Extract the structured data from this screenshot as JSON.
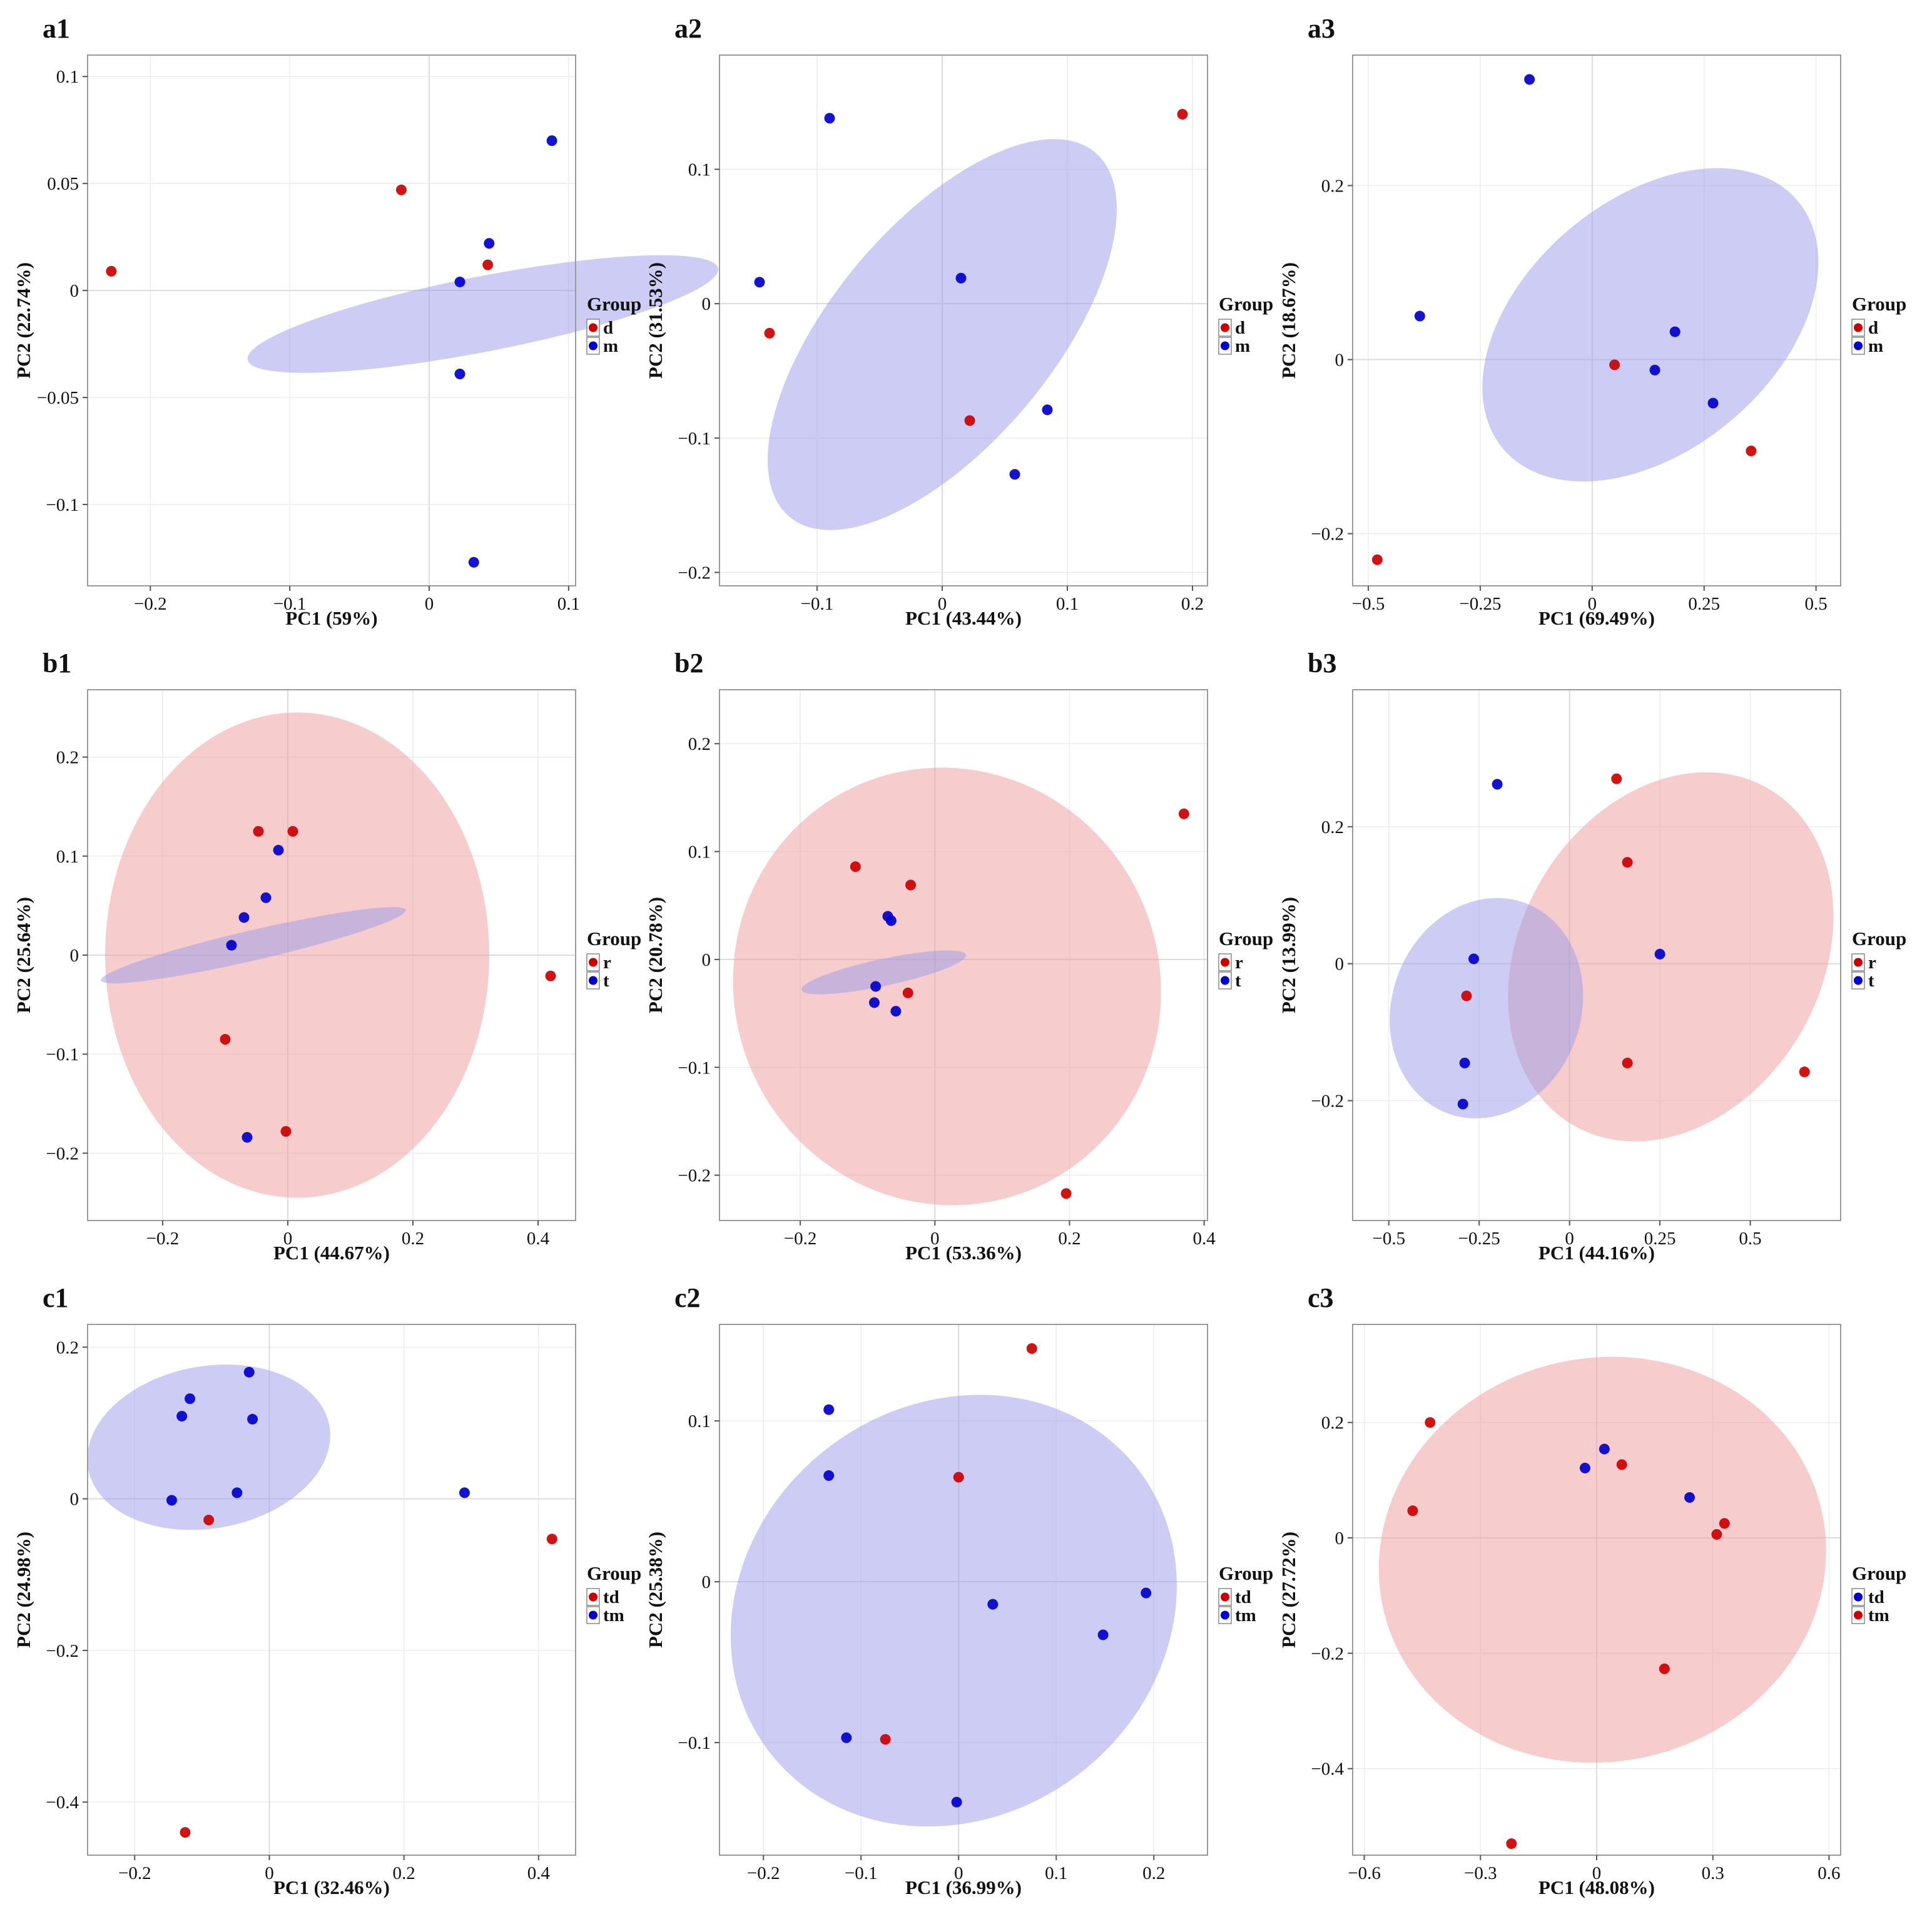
{
  "figure": {
    "grid": "on",
    "legend_position": "right",
    "zero_lines": "on"
  },
  "chart_data": [
    {
      "panel": "a1",
      "type": "scatter",
      "xlabel": "PC1 (59%)",
      "ylabel": "PC2 (22.74%)",
      "xlim": [
        -0.245,
        0.105
      ],
      "ylim": [
        -0.138,
        0.11
      ],
      "xticks": [
        -0.2,
        -0.1,
        0,
        0.1
      ],
      "xtick_labels": [
        "−0.2",
        "−0.1",
        "0",
        "0.1"
      ],
      "yticks": [
        -0.1,
        -0.05,
        0,
        0.05,
        0.1
      ],
      "ytick_labels": [
        "−0.1",
        "−0.05",
        "0",
        "0.05",
        "0.1"
      ],
      "legend": {
        "title": "Group",
        "entries": [
          {
            "label": "d",
            "color": "#cc0000"
          },
          {
            "label": "m",
            "color": "#0000cc"
          }
        ]
      },
      "ellipses": [
        {
          "group": "m",
          "color": "#9999ea",
          "cx": 0.0385,
          "cy": -0.011,
          "rx": 0.027,
          "ry": 0.112,
          "angle": 79
        }
      ],
      "series": [
        {
          "name": "d",
          "color": "#cc0000",
          "points": [
            [
              -0.228,
              0.009
            ],
            [
              -0.02,
              0.047
            ],
            [
              0.042,
              0.012
            ]
          ]
        },
        {
          "name": "m",
          "color": "#0000cc",
          "points": [
            [
              0.088,
              0.07
            ],
            [
              0.043,
              0.022
            ],
            [
              0.022,
              0.004
            ],
            [
              0.022,
              -0.039
            ],
            [
              0.032,
              -0.127
            ]
          ]
        }
      ]
    },
    {
      "panel": "a2",
      "type": "scatter",
      "xlabel": "PC1 (43.44%)",
      "ylabel": "PC2 (31.53%)",
      "xlim": [
        -0.178,
        0.212
      ],
      "ylim": [
        -0.21,
        0.185
      ],
      "xticks": [
        -0.1,
        0,
        0.1,
        0.2
      ],
      "xtick_labels": [
        "−0.1",
        "0",
        "0.1",
        "0.2"
      ],
      "yticks": [
        -0.2,
        -0.1,
        0,
        0.1
      ],
      "ytick_labels": [
        "−0.2",
        "−0.1",
        "0",
        "0.1"
      ],
      "legend": {
        "title": "Group",
        "entries": [
          {
            "label": "d",
            "color": "#cc0000"
          },
          {
            "label": "m",
            "color": "#0000cc"
          }
        ]
      },
      "ellipses": [
        {
          "group": "m",
          "color": "#9999ea",
          "cx": 0.0,
          "cy": -0.023,
          "rx": 0.19,
          "ry": 0.082,
          "angle": -50
        }
      ],
      "series": [
        {
          "name": "d",
          "color": "#cc0000",
          "points": [
            [
              0.192,
              0.141
            ],
            [
              -0.138,
              -0.022
            ],
            [
              0.022,
              -0.087
            ]
          ]
        },
        {
          "name": "m",
          "color": "#0000cc",
          "points": [
            [
              -0.09,
              0.138
            ],
            [
              -0.146,
              0.016
            ],
            [
              0.015,
              0.019
            ],
            [
              0.084,
              -0.079
            ],
            [
              0.058,
              -0.127
            ]
          ]
        }
      ]
    },
    {
      "panel": "a3",
      "type": "scatter",
      "xlabel": "PC1 (69.49%)",
      "ylabel": "PC2 (18.67%)",
      "xlim": [
        -0.535,
        0.555
      ],
      "ylim": [
        -0.26,
        0.35
      ],
      "xticks": [
        -0.5,
        -0.25,
        0,
        0.25,
        0.5
      ],
      "xtick_labels": [
        "−0.5",
        "−0.25",
        "0",
        "0.25",
        "0.5"
      ],
      "yticks": [
        -0.2,
        0,
        0.2
      ],
      "ytick_labels": [
        "−0.2",
        "0",
        "0.2"
      ],
      "legend": {
        "title": "Group",
        "entries": [
          {
            "label": "d",
            "color": "#cc0000"
          },
          {
            "label": "m",
            "color": "#0000cc"
          }
        ]
      },
      "ellipses": [
        {
          "group": "m",
          "color": "#9999ea",
          "cx": 0.13,
          "cy": 0.04,
          "rx": 0.43,
          "ry": 0.144,
          "angle": -40
        }
      ],
      "series": [
        {
          "name": "d",
          "color": "#cc0000",
          "points": [
            [
              -0.48,
              -0.23
            ],
            [
              0.05,
              -0.006
            ],
            [
              0.355,
              -0.105
            ]
          ]
        },
        {
          "name": "m",
          "color": "#0000cc",
          "points": [
            [
              -0.14,
              0.322
            ],
            [
              -0.385,
              0.05
            ],
            [
              0.185,
              0.032
            ],
            [
              0.14,
              -0.012
            ],
            [
              0.27,
              -0.05
            ]
          ]
        }
      ]
    },
    {
      "panel": "b1",
      "type": "scatter",
      "xlabel": "PC1 (44.67%)",
      "ylabel": "PC2 (25.64%)",
      "xlim": [
        -0.32,
        0.46
      ],
      "ylim": [
        -0.268,
        0.268
      ],
      "xticks": [
        -0.2,
        0,
        0.2,
        0.4
      ],
      "xtick_labels": [
        "−0.2",
        "0",
        "0.2",
        "0.4"
      ],
      "yticks": [
        -0.2,
        -0.1,
        0,
        0.1,
        0.2
      ],
      "ytick_labels": [
        "−0.2",
        "−0.1",
        "0",
        "0.1",
        "0.2"
      ],
      "legend": {
        "title": "Group",
        "entries": [
          {
            "label": "r",
            "color": "#cc0000"
          },
          {
            "label": "t",
            "color": "#0000cc"
          }
        ]
      },
      "ellipses": [
        {
          "group": "r",
          "color": "#ee9a9a",
          "cx": 0.015,
          "cy": 0.0,
          "rx": 0.307,
          "ry": 0.245,
          "angle": 0
        },
        {
          "group": "t",
          "color": "#9999ea",
          "cx": -0.055,
          "cy": 0.01,
          "rx": 0.024,
          "ry": 0.158,
          "angle": 77
        }
      ],
      "series": [
        {
          "name": "r",
          "color": "#cc0000",
          "points": [
            [
              -0.047,
              0.125
            ],
            [
              0.008,
              0.125
            ],
            [
              0.42,
              -0.021
            ],
            [
              -0.1,
              -0.085
            ],
            [
              -0.003,
              -0.178
            ]
          ]
        },
        {
          "name": "t",
          "color": "#0000cc",
          "points": [
            [
              -0.015,
              0.106
            ],
            [
              -0.035,
              0.058
            ],
            [
              -0.07,
              0.038
            ],
            [
              -0.09,
              0.01
            ],
            [
              -0.065,
              -0.184
            ]
          ]
        }
      ]
    },
    {
      "panel": "b2",
      "type": "scatter",
      "xlabel": "PC1 (53.36%)",
      "ylabel": "PC2 (20.78%)",
      "xlim": [
        -0.32,
        0.405
      ],
      "ylim": [
        -0.242,
        0.25
      ],
      "xticks": [
        -0.2,
        0,
        0.2,
        0.4
      ],
      "xtick_labels": [
        "−0.2",
        "0",
        "0.2",
        "0.4"
      ],
      "yticks": [
        -0.2,
        -0.1,
        0,
        0.1,
        0.2
      ],
      "ytick_labels": [
        "−0.2",
        "−0.1",
        "0",
        "0.1",
        "0.2"
      ],
      "legend": {
        "title": "Group",
        "entries": [
          {
            "label": "r",
            "color": "#cc0000"
          },
          {
            "label": "t",
            "color": "#0000cc"
          }
        ]
      },
      "ellipses": [
        {
          "group": "r",
          "color": "#ee9a9a",
          "cx": 0.018,
          "cy": -0.025,
          "rx": 0.316,
          "ry": 0.204,
          "angle": -25
        },
        {
          "group": "t",
          "color": "#9999ea",
          "cx": -0.076,
          "cy": -0.012,
          "rx": 0.02,
          "ry": 0.078,
          "angle": 78
        }
      ],
      "series": [
        {
          "name": "r",
          "color": "#cc0000",
          "points": [
            [
              0.37,
              0.135
            ],
            [
              -0.118,
              0.086
            ],
            [
              -0.036,
              0.069
            ],
            [
              -0.04,
              -0.031
            ],
            [
              0.195,
              -0.217
            ]
          ]
        },
        {
          "name": "t",
          "color": "#0000cc",
          "points": [
            [
              -0.07,
              0.04
            ],
            [
              -0.065,
              0.036
            ],
            [
              -0.088,
              -0.025
            ],
            [
              -0.09,
              -0.04
            ],
            [
              -0.058,
              -0.048
            ]
          ]
        }
      ]
    },
    {
      "panel": "b3",
      "type": "scatter",
      "xlabel": "PC1 (44.16%)",
      "ylabel": "PC2 (13.99%)",
      "xlim": [
        -0.6,
        0.75
      ],
      "ylim": [
        -0.375,
        0.4
      ],
      "xticks": [
        -0.5,
        -0.25,
        0,
        0.25,
        0.5
      ],
      "xtick_labels": [
        "−0.5",
        "−0.25",
        "0",
        "0.25",
        "0.5"
      ],
      "yticks": [
        -0.2,
        0,
        0.2
      ],
      "ytick_labels": [
        "−0.2",
        "0",
        "0.2"
      ],
      "legend": {
        "title": "Group",
        "entries": [
          {
            "label": "r",
            "color": "#cc0000"
          },
          {
            "label": "t",
            "color": "#0000cc"
          }
        ]
      },
      "ellipses": [
        {
          "group": "r",
          "color": "#ee9a9a",
          "cx": 0.28,
          "cy": 0.01,
          "rx": 0.538,
          "ry": 0.22,
          "angle": -60
        },
        {
          "group": "t",
          "color": "#9999ea",
          "cx": -0.23,
          "cy": -0.065,
          "rx": 0.31,
          "ry": 0.138,
          "angle": -70
        }
      ],
      "series": [
        {
          "name": "r",
          "color": "#cc0000",
          "points": [
            [
              0.13,
              0.27
            ],
            [
              0.16,
              0.148
            ],
            [
              -0.285,
              -0.047
            ],
            [
              0.16,
              -0.145
            ],
            [
              0.65,
              -0.158
            ]
          ]
        },
        {
          "name": "t",
          "color": "#0000cc",
          "points": [
            [
              -0.2,
              0.262
            ],
            [
              -0.265,
              0.007
            ],
            [
              0.25,
              0.014
            ],
            [
              -0.29,
              -0.145
            ],
            [
              -0.295,
              -0.205
            ]
          ]
        }
      ]
    },
    {
      "panel": "c1",
      "type": "scatter",
      "xlabel": "PC1 (32.46%)",
      "ylabel": "PC2 (24.98%)",
      "xlim": [
        -0.27,
        0.455
      ],
      "ylim": [
        -0.47,
        0.23
      ],
      "xticks": [
        -0.2,
        0,
        0.2,
        0.4
      ],
      "xtick_labels": [
        "−0.2",
        "0",
        "0.2",
        "0.4"
      ],
      "yticks": [
        -0.4,
        -0.2,
        0,
        0.2
      ],
      "ytick_labels": [
        "−0.4",
        "−0.2",
        "0",
        "0.2"
      ],
      "legend": {
        "title": "Group",
        "entries": [
          {
            "label": "td",
            "color": "#cc0000"
          },
          {
            "label": "tm",
            "color": "#0000cc"
          }
        ]
      },
      "ellipses": [
        {
          "group": "tm",
          "color": "#9999ea",
          "cx": -0.09,
          "cy": 0.068,
          "rx": 0.182,
          "ry": 0.107,
          "angle": -10
        }
      ],
      "series": [
        {
          "name": "td",
          "color": "#cc0000",
          "points": [
            [
              -0.09,
              -0.028
            ],
            [
              0.42,
              -0.053
            ],
            [
              -0.125,
              -0.44
            ]
          ]
        },
        {
          "name": "tm",
          "color": "#0000cc",
          "points": [
            [
              -0.03,
              0.167
            ],
            [
              -0.118,
              0.132
            ],
            [
              -0.13,
              0.109
            ],
            [
              -0.025,
              0.105
            ],
            [
              -0.145,
              -0.002
            ],
            [
              -0.048,
              0.008
            ],
            [
              0.29,
              0.008
            ]
          ]
        }
      ]
    },
    {
      "panel": "c2",
      "type": "scatter",
      "xlabel": "PC1 (36.99%)",
      "ylabel": "PC2 (25.38%)",
      "xlim": [
        -0.245,
        0.255
      ],
      "ylim": [
        -0.17,
        0.16
      ],
      "xticks": [
        -0.2,
        -0.1,
        0,
        0.1,
        0.2
      ],
      "xtick_labels": [
        "−0.2",
        "−0.1",
        "0",
        "0.1",
        "0.2"
      ],
      "yticks": [
        -0.1,
        0,
        0.1
      ],
      "ytick_labels": [
        "−0.1",
        "0",
        "0.1"
      ],
      "legend": {
        "title": "Group",
        "entries": [
          {
            "label": "td",
            "color": "#cc0000"
          },
          {
            "label": "tm",
            "color": "#0000cc"
          }
        ]
      },
      "ellipses": [
        {
          "group": "tm",
          "color": "#9999ea",
          "cx": -0.005,
          "cy": -0.018,
          "rx": 0.238,
          "ry": 0.128,
          "angle": -37
        }
      ],
      "series": [
        {
          "name": "td",
          "color": "#cc0000",
          "points": [
            [
              0.075,
              0.145
            ],
            [
              0.0,
              0.065
            ],
            [
              -0.075,
              -0.098
            ]
          ]
        },
        {
          "name": "tm",
          "color": "#0000cc",
          "points": [
            [
              -0.133,
              0.107
            ],
            [
              -0.133,
              0.066
            ],
            [
              0.035,
              -0.014
            ],
            [
              0.192,
              -0.007
            ],
            [
              0.148,
              -0.033
            ],
            [
              -0.115,
              -0.097
            ],
            [
              -0.002,
              -0.137
            ]
          ]
        }
      ]
    },
    {
      "panel": "c3",
      "type": "scatter",
      "xlabel": "PC1 (48.08%)",
      "ylabel": "PC2 (27.72%)",
      "xlim": [
        -0.63,
        0.63
      ],
      "ylim": [
        -0.55,
        0.37
      ],
      "xticks": [
        -0.6,
        -0.3,
        0,
        0.3,
        0.6
      ],
      "xtick_labels": [
        "−0.6",
        "−0.3",
        "0",
        "0.3",
        "0.6"
      ],
      "yticks": [
        -0.4,
        -0.2,
        0,
        0.2
      ],
      "ytick_labels": [
        "−0.4",
        "−0.2",
        "0",
        "0.2"
      ],
      "legend": {
        "title": "Group",
        "entries": [
          {
            "label": "td",
            "color": "#0000cc"
          },
          {
            "label": "tm",
            "color": "#cc0000"
          }
        ]
      },
      "ellipses": [
        {
          "group": "tm",
          "color": "#ee9a9a",
          "cx": 0.015,
          "cy": -0.038,
          "rx": 0.58,
          "ry": 0.35,
          "angle": -12
        }
      ],
      "series": [
        {
          "name": "td",
          "color": "#0000cc",
          "points": [
            [
              0.02,
              0.154
            ],
            [
              -0.03,
              0.121
            ],
            [
              0.24,
              0.07
            ]
          ]
        },
        {
          "name": "tm",
          "color": "#cc0000",
          "points": [
            [
              -0.43,
              0.2
            ],
            [
              0.065,
              0.127
            ],
            [
              -0.475,
              0.047
            ],
            [
              0.33,
              0.025
            ],
            [
              0.31,
              0.006
            ],
            [
              0.175,
              -0.227
            ],
            [
              -0.22,
              -0.53
            ]
          ]
        }
      ]
    }
  ]
}
